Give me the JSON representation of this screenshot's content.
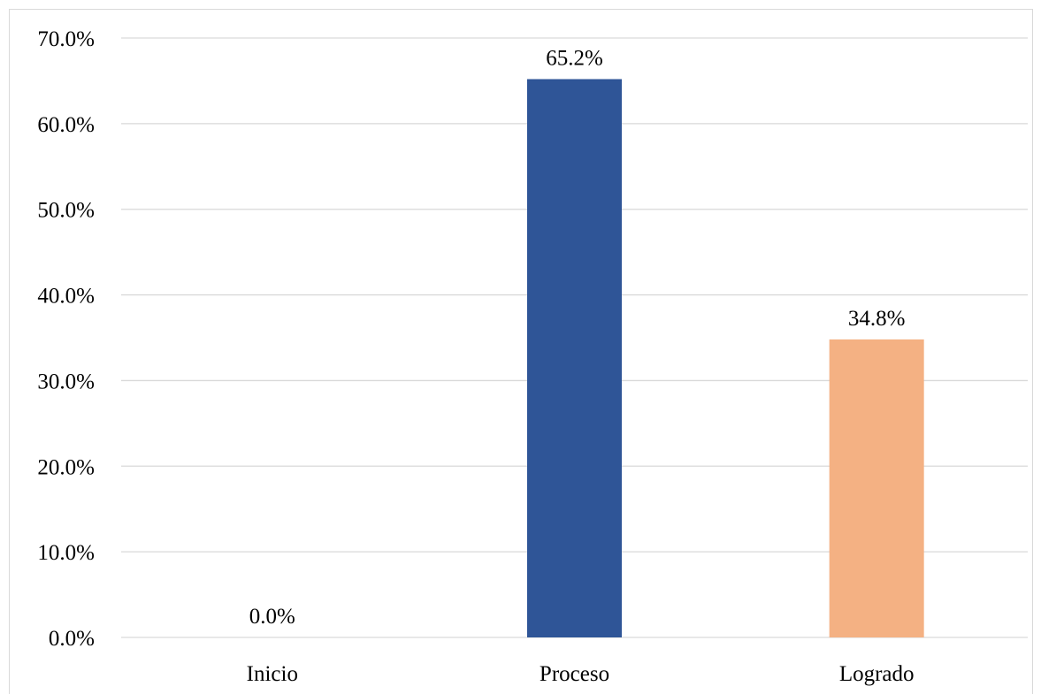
{
  "chart_data": {
    "type": "bar",
    "title": "",
    "xlabel": "",
    "ylabel": "",
    "categories": [
      "Inicio",
      "Proceso",
      "Logrado"
    ],
    "values": [
      0.0,
      65.2,
      34.8
    ],
    "data_labels": [
      "0.0%",
      "65.2%",
      "34.8%"
    ],
    "bar_colors": [
      "#2F5597",
      "#2F5597",
      "#F4B183"
    ],
    "ylim": [
      0,
      70
    ],
    "yticks": [
      0,
      10,
      20,
      30,
      40,
      50,
      60,
      70
    ],
    "ytick_labels": [
      "0.0%",
      "10.0%",
      "20.0%",
      "30.0%",
      "40.0%",
      "50.0%",
      "60.0%",
      "70.0%"
    ],
    "grid": true,
    "gridline_color": "#d9d9d9",
    "legend": "none"
  }
}
